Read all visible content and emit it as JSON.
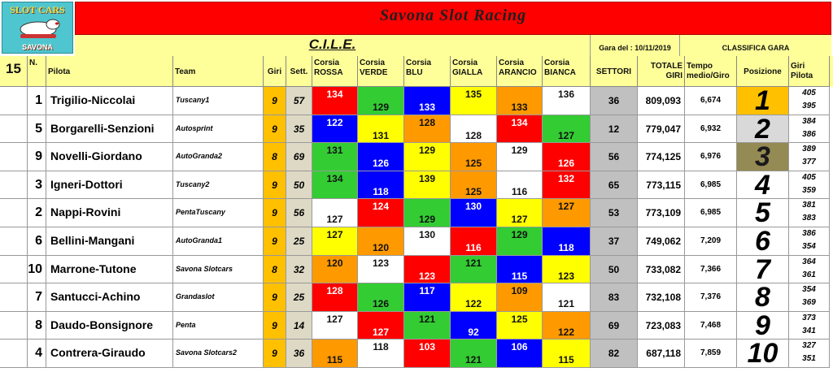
{
  "logo": {
    "top_text": "SLOT CARS",
    "bottom_text": "SAVONA"
  },
  "title": "Savona Slot Racing",
  "event": "C.I.L.E.",
  "gara_del": "Gara del : 10/11/2019",
  "classifica": "CLASSIFICA GARA",
  "total_count": "15",
  "headers": {
    "n": "N.",
    "pilota": "Pilota",
    "team": "Team",
    "giri": "Giri",
    "sett": "Sett.",
    "lanes": [
      "Corsia ROSSA",
      "Corsia VERDE",
      "Corsia BLU",
      "Corsia GIALLA",
      "Corsia ARANCIO",
      "Corsia BIANCA"
    ],
    "settori": "SETTORI",
    "totale": "TOTALE GIRI",
    "tempo": "Tempo medio/Giro",
    "posizione": "Posizione",
    "giri_pilota": "Giri Pilota"
  },
  "colors": {
    "rossa": "#ff0000",
    "verde": "#33cc33",
    "blu": "#0000ff",
    "gialla": "#ffff00",
    "arancio": "#ff9900",
    "bianca": "#ffffff",
    "pos1": "#ffc000",
    "pos2": "#d9d9d9",
    "pos3": "#948a54",
    "header": "#ffff99",
    "banner": "#ff0000"
  },
  "rows": [
    {
      "n": "1",
      "pilota": "Trigilio-Niccolai",
      "team": "Tuscany1",
      "giri": "9",
      "sett": "57",
      "lanes": [
        {
          "v": "134",
          "c": "rossa",
          "p": "top"
        },
        {
          "v": "129",
          "c": "verde",
          "p": "bottom"
        },
        {
          "v": "133",
          "c": "blu",
          "p": "bottom"
        },
        {
          "v": "135",
          "c": "gialla",
          "p": "top"
        },
        {
          "v": "133",
          "c": "arancio",
          "p": "bottom"
        },
        {
          "v": "136",
          "c": "bianca",
          "p": "top"
        }
      ],
      "settori": "36",
      "totale": "809,093",
      "tempo": "6,674",
      "pos": "1",
      "gp": [
        "405",
        "395"
      ]
    },
    {
      "n": "5",
      "pilota": "Borgarelli-Senzioni",
      "team": "Autosprint",
      "giri": "9",
      "sett": "35",
      "lanes": [
        {
          "v": "122",
          "c": "blu",
          "p": "top"
        },
        {
          "v": "131",
          "c": "gialla",
          "p": "bottom"
        },
        {
          "v": "128",
          "c": "arancio",
          "p": "top"
        },
        {
          "v": "128",
          "c": "bianca",
          "p": "bottom"
        },
        {
          "v": "134",
          "c": "rossa",
          "p": "top"
        },
        {
          "v": "127",
          "c": "verde",
          "p": "bottom"
        }
      ],
      "settori": "12",
      "totale": "779,047",
      "tempo": "6,932",
      "pos": "2",
      "gp": [
        "384",
        "386"
      ]
    },
    {
      "n": "9",
      "pilota": "Novelli-Giordano",
      "team": "AutoGranda2",
      "giri": "8",
      "sett": "69",
      "lanes": [
        {
          "v": "131",
          "c": "verde",
          "p": "top"
        },
        {
          "v": "126",
          "c": "blu",
          "p": "bottom"
        },
        {
          "v": "129",
          "c": "gialla",
          "p": "top"
        },
        {
          "v": "125",
          "c": "arancio",
          "p": "bottom"
        },
        {
          "v": "129",
          "c": "bianca",
          "p": "top"
        },
        {
          "v": "126",
          "c": "rossa",
          "p": "bottom"
        }
      ],
      "settori": "56",
      "totale": "774,125",
      "tempo": "6,976",
      "pos": "3",
      "gp": [
        "389",
        "377"
      ]
    },
    {
      "n": "3",
      "pilota": "Igneri-Dottori",
      "team": "Tuscany2",
      "giri": "9",
      "sett": "50",
      "lanes": [
        {
          "v": "134",
          "c": "verde",
          "p": "top"
        },
        {
          "v": "118",
          "c": "blu",
          "p": "bottom"
        },
        {
          "v": "139",
          "c": "gialla",
          "p": "top"
        },
        {
          "v": "125",
          "c": "arancio",
          "p": "bottom"
        },
        {
          "v": "116",
          "c": "bianca",
          "p": "bottom"
        },
        {
          "v": "132",
          "c": "rossa",
          "p": "top"
        }
      ],
      "settori": "65",
      "totale": "773,115",
      "tempo": "6,985",
      "pos": "4",
      "gp": [
        "405",
        "359"
      ]
    },
    {
      "n": "2",
      "pilota": "Nappi-Rovini",
      "team": "PentaTuscany",
      "giri": "9",
      "sett": "56",
      "lanes": [
        {
          "v": "127",
          "c": "bianca",
          "p": "bottom"
        },
        {
          "v": "124",
          "c": "rossa",
          "p": "top"
        },
        {
          "v": "129",
          "c": "verde",
          "p": "bottom"
        },
        {
          "v": "130",
          "c": "blu",
          "p": "top"
        },
        {
          "v": "127",
          "c": "gialla",
          "p": "bottom"
        },
        {
          "v": "127",
          "c": "arancio",
          "p": "top"
        }
      ],
      "settori": "53",
      "totale": "773,109",
      "tempo": "6,985",
      "pos": "5",
      "gp": [
        "381",
        "383"
      ]
    },
    {
      "n": "6",
      "pilota": "Bellini-Mangani",
      "team": "AutoGranda1",
      "giri": "9",
      "sett": "25",
      "lanes": [
        {
          "v": "127",
          "c": "gialla",
          "p": "top"
        },
        {
          "v": "120",
          "c": "arancio",
          "p": "bottom"
        },
        {
          "v": "130",
          "c": "bianca",
          "p": "top"
        },
        {
          "v": "116",
          "c": "rossa",
          "p": "bottom"
        },
        {
          "v": "129",
          "c": "verde",
          "p": "top"
        },
        {
          "v": "118",
          "c": "blu",
          "p": "bottom"
        }
      ],
      "settori": "37",
      "totale": "749,062",
      "tempo": "7,209",
      "pos": "6",
      "gp": [
        "386",
        "354"
      ]
    },
    {
      "n": "10",
      "pilota": "Marrone-Tutone",
      "team": "Savona Slotcars",
      "giri": "8",
      "sett": "32",
      "lanes": [
        {
          "v": "120",
          "c": "arancio",
          "p": "top"
        },
        {
          "v": "123",
          "c": "bianca",
          "p": "top"
        },
        {
          "v": "123",
          "c": "rossa",
          "p": "bottom"
        },
        {
          "v": "121",
          "c": "verde",
          "p": "top"
        },
        {
          "v": "115",
          "c": "blu",
          "p": "bottom"
        },
        {
          "v": "123",
          "c": "gialla",
          "p": "bottom"
        }
      ],
      "settori": "50",
      "totale": "733,082",
      "tempo": "7,366",
      "pos": "7",
      "gp": [
        "364",
        "361"
      ]
    },
    {
      "n": "7",
      "pilota": "Santucci-Achino",
      "team": "Grandaslot",
      "giri": "9",
      "sett": "25",
      "lanes": [
        {
          "v": "128",
          "c": "rossa",
          "p": "top"
        },
        {
          "v": "126",
          "c": "verde",
          "p": "bottom"
        },
        {
          "v": "117",
          "c": "blu",
          "p": "top"
        },
        {
          "v": "122",
          "c": "gialla",
          "p": "bottom"
        },
        {
          "v": "109",
          "c": "arancio",
          "p": "top"
        },
        {
          "v": "121",
          "c": "bianca",
          "p": "bottom"
        }
      ],
      "settori": "83",
      "totale": "732,108",
      "tempo": "7,376",
      "pos": "8",
      "gp": [
        "354",
        "369"
      ]
    },
    {
      "n": "8",
      "pilota": "Daudo-Bonsignore",
      "team": "Penta",
      "giri": "9",
      "sett": "14",
      "lanes": [
        {
          "v": "127",
          "c": "bianca",
          "p": "top"
        },
        {
          "v": "127",
          "c": "rossa",
          "p": "bottom"
        },
        {
          "v": "121",
          "c": "verde",
          "p": "top"
        },
        {
          "v": "92",
          "c": "blu",
          "p": "bottom"
        },
        {
          "v": "125",
          "c": "gialla",
          "p": "top"
        },
        {
          "v": "122",
          "c": "arancio",
          "p": "bottom"
        }
      ],
      "settori": "69",
      "totale": "723,083",
      "tempo": "7,468",
      "pos": "9",
      "gp": [
        "373",
        "341"
      ]
    },
    {
      "n": "4",
      "pilota": "Contrera-Giraudo",
      "team": "Savona Slotcars2",
      "giri": "9",
      "sett": "36",
      "lanes": [
        {
          "v": "115",
          "c": "arancio",
          "p": "bottom"
        },
        {
          "v": "118",
          "c": "bianca",
          "p": "top"
        },
        {
          "v": "103",
          "c": "rossa",
          "p": "top"
        },
        {
          "v": "121",
          "c": "verde",
          "p": "bottom"
        },
        {
          "v": "106",
          "c": "blu",
          "p": "top"
        },
        {
          "v": "115",
          "c": "gialla",
          "p": "bottom"
        }
      ],
      "settori": "82",
      "totale": "687,118",
      "tempo": "7,859",
      "pos": "10",
      "gp": [
        "327",
        "351"
      ]
    }
  ]
}
